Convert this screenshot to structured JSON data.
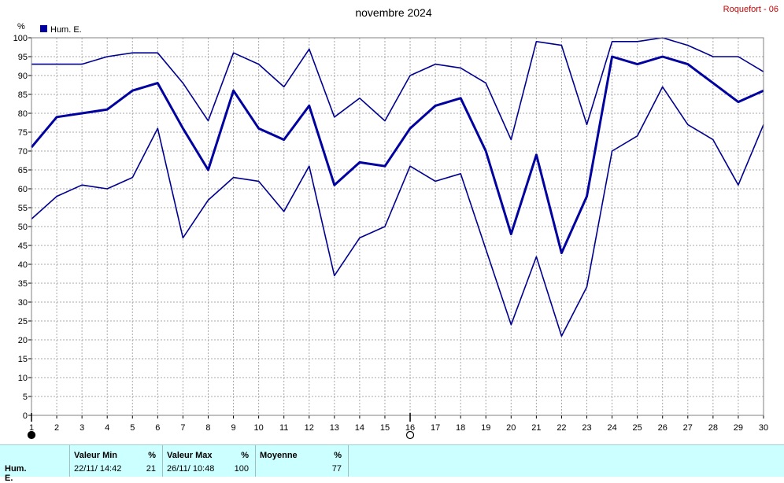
{
  "chart_data": {
    "type": "line",
    "title": "novembre 2024",
    "station": "Roquefort - 06",
    "ylabel": "%",
    "ylim": [
      0,
      100
    ],
    "ystep": 5,
    "x": [
      1,
      2,
      3,
      4,
      5,
      6,
      7,
      8,
      9,
      10,
      11,
      12,
      13,
      14,
      15,
      16,
      17,
      18,
      19,
      20,
      21,
      22,
      23,
      24,
      25,
      26,
      27,
      28,
      29,
      30
    ],
    "legend": {
      "label": "Hum. E.",
      "position": "top-left",
      "color": "#0000a0"
    },
    "grid": true,
    "series": [
      {
        "role": "max",
        "color": "#000090",
        "values": [
          93,
          93,
          93,
          95,
          96,
          96,
          88,
          78,
          96,
          93,
          87,
          97,
          79,
          84,
          78,
          90,
          93,
          92,
          88,
          73,
          99,
          98,
          77,
          99,
          99,
          100,
          98,
          95,
          95,
          91
        ]
      },
      {
        "role": "mean",
        "color": "#0000a0",
        "values": [
          71,
          79,
          80,
          81,
          86,
          88,
          76,
          65,
          86,
          76,
          73,
          82,
          61,
          67,
          66,
          76,
          82,
          84,
          70,
          48,
          69,
          43,
          58,
          95,
          93,
          95,
          93,
          88,
          83,
          86
        ]
      },
      {
        "role": "min",
        "color": "#000090",
        "values": [
          52,
          58,
          61,
          60,
          63,
          76,
          47,
          57,
          63,
          62,
          54,
          66,
          37,
          47,
          50,
          66,
          62,
          64,
          44,
          24,
          42,
          21,
          34,
          70,
          74,
          87,
          77,
          73,
          61,
          77
        ]
      }
    ],
    "markers": [
      {
        "day": 1,
        "symbol": "filled-circle"
      },
      {
        "day": 16,
        "symbol": "open-circle"
      }
    ]
  },
  "stats": {
    "row_label": "Hum. E.",
    "min": {
      "header": "Valeur Min",
      "unit": "%",
      "date": "22/11/  14:42",
      "value": "21"
    },
    "max": {
      "header": "Valeur Max",
      "unit": "%",
      "date": "26/11/  10:48",
      "value": "100"
    },
    "mean": {
      "header": "Moyenne",
      "unit": "%",
      "value": "77"
    }
  }
}
